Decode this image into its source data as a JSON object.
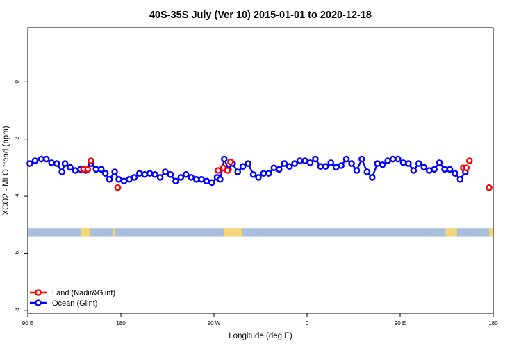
{
  "chart_data": {
    "type": "scatter",
    "title": "40S-35S July (Ver 10)   2015-01-01 to 2020-12-18",
    "xlabel": "Longitude (deg E)",
    "ylabel": "XCO2 - MLO trend (ppm)",
    "xlim": [
      90,
      540
    ],
    "ylim": [
      -8.1,
      1.9
    ],
    "x_ticks": [
      {
        "value": 90,
        "label": "90 E"
      },
      {
        "value": 180,
        "label": "180"
      },
      {
        "value": 270,
        "label": "90 W"
      },
      {
        "value": 360,
        "label": "0"
      },
      {
        "value": 450,
        "label": "90 E"
      },
      {
        "value": 540,
        "label": "180"
      }
    ],
    "y_ticks": [
      {
        "value": 0,
        "label": "0"
      },
      {
        "value": -2,
        "label": "-2"
      },
      {
        "value": -4,
        "label": "-4"
      },
      {
        "value": -6,
        "label": "-6"
      },
      {
        "value": -8,
        "label": "-8"
      }
    ],
    "legend_position": "bottom-left",
    "series": [
      {
        "name": "Land (Nadir&Glint)",
        "color": "#ff0000",
        "marker": "open-circle",
        "points": [
          [
            144,
            -3.06
          ],
          [
            148,
            -3.06
          ],
          [
            151,
            -2.76
          ],
          [
            177,
            -3.7
          ],
          [
            274,
            -3.1
          ],
          [
            279,
            -3.01
          ],
          [
            283,
            -3.1
          ],
          [
            286,
            -2.8
          ],
          [
            511,
            -3.01
          ],
          [
            514,
            -3.01
          ],
          [
            517,
            -2.76
          ],
          [
            536,
            -3.7
          ]
        ]
      },
      {
        "name": "Ocean (Glint)",
        "color": "#0000ff",
        "marker": "open-circle",
        "points": [
          [
            92,
            -2.86
          ],
          [
            97,
            -2.76
          ],
          [
            103,
            -2.7
          ],
          [
            108,
            -2.7
          ],
          [
            113,
            -2.83
          ],
          [
            118,
            -2.86
          ],
          [
            123,
            -3.15
          ],
          [
            126,
            -2.86
          ],
          [
            131,
            -2.99
          ],
          [
            136,
            -3.1
          ],
          [
            141,
            -3.06
          ],
          [
            146,
            -3.1
          ],
          [
            151,
            -2.86
          ],
          [
            156,
            -3.06
          ],
          [
            161,
            -3.06
          ],
          [
            165,
            -3.2
          ],
          [
            169,
            -3.41
          ],
          [
            174,
            -3.15
          ],
          [
            178,
            -3.41
          ],
          [
            183,
            -3.47
          ],
          [
            188,
            -3.41
          ],
          [
            193,
            -3.34
          ],
          [
            198,
            -3.2
          ],
          [
            203,
            -3.24
          ],
          [
            208,
            -3.2
          ],
          [
            213,
            -3.24
          ],
          [
            218,
            -3.34
          ],
          [
            223,
            -3.15
          ],
          [
            228,
            -3.24
          ],
          [
            233,
            -3.47
          ],
          [
            238,
            -3.34
          ],
          [
            243,
            -3.24
          ],
          [
            248,
            -3.34
          ],
          [
            253,
            -3.41
          ],
          [
            258,
            -3.41
          ],
          [
            263,
            -3.47
          ],
          [
            268,
            -3.52
          ],
          [
            273,
            -3.34
          ],
          [
            276,
            -3.41
          ],
          [
            280,
            -2.7
          ],
          [
            284,
            -3.06
          ],
          [
            288,
            -2.86
          ],
          [
            293,
            -3.15
          ],
          [
            298,
            -2.96
          ],
          [
            303,
            -2.86
          ],
          [
            308,
            -3.24
          ],
          [
            313,
            -3.34
          ],
          [
            318,
            -3.2
          ],
          [
            323,
            -3.2
          ],
          [
            328,
            -3.01
          ],
          [
            333,
            -3.06
          ],
          [
            338,
            -2.86
          ],
          [
            343,
            -2.96
          ],
          [
            348,
            -2.86
          ],
          [
            353,
            -2.76
          ],
          [
            358,
            -2.76
          ],
          [
            363,
            -2.83
          ],
          [
            368,
            -2.7
          ],
          [
            373,
            -2.96
          ],
          [
            378,
            -2.96
          ],
          [
            383,
            -2.83
          ],
          [
            388,
            -2.99
          ],
          [
            393,
            -2.93
          ],
          [
            398,
            -2.7
          ],
          [
            403,
            -2.86
          ],
          [
            408,
            -3.1
          ],
          [
            413,
            -2.7
          ],
          [
            418,
            -3.15
          ],
          [
            423,
            -3.34
          ],
          [
            428,
            -2.86
          ],
          [
            433,
            -2.9
          ],
          [
            438,
            -2.76
          ],
          [
            443,
            -2.7
          ],
          [
            448,
            -2.7
          ],
          [
            453,
            -2.83
          ],
          [
            458,
            -2.86
          ],
          [
            463,
            -3.1
          ],
          [
            468,
            -2.86
          ],
          [
            473,
            -2.99
          ],
          [
            478,
            -3.1
          ],
          [
            483,
            -3.06
          ],
          [
            488,
            -2.83
          ],
          [
            493,
            -3.06
          ],
          [
            498,
            -3.06
          ],
          [
            503,
            -3.2
          ],
          [
            508,
            -3.41
          ],
          [
            513,
            -3.15
          ]
        ]
      }
    ],
    "land_strip": {
      "y_range": [
        -5.12,
        -5.42
      ],
      "ocean_color": "#a8bfde",
      "land_color": "#f5d77a",
      "land_segments": [
        [
          141,
          150
        ],
        [
          172,
          174
        ],
        [
          280,
          297
        ],
        [
          494,
          505
        ],
        [
          536,
          540
        ]
      ]
    }
  }
}
